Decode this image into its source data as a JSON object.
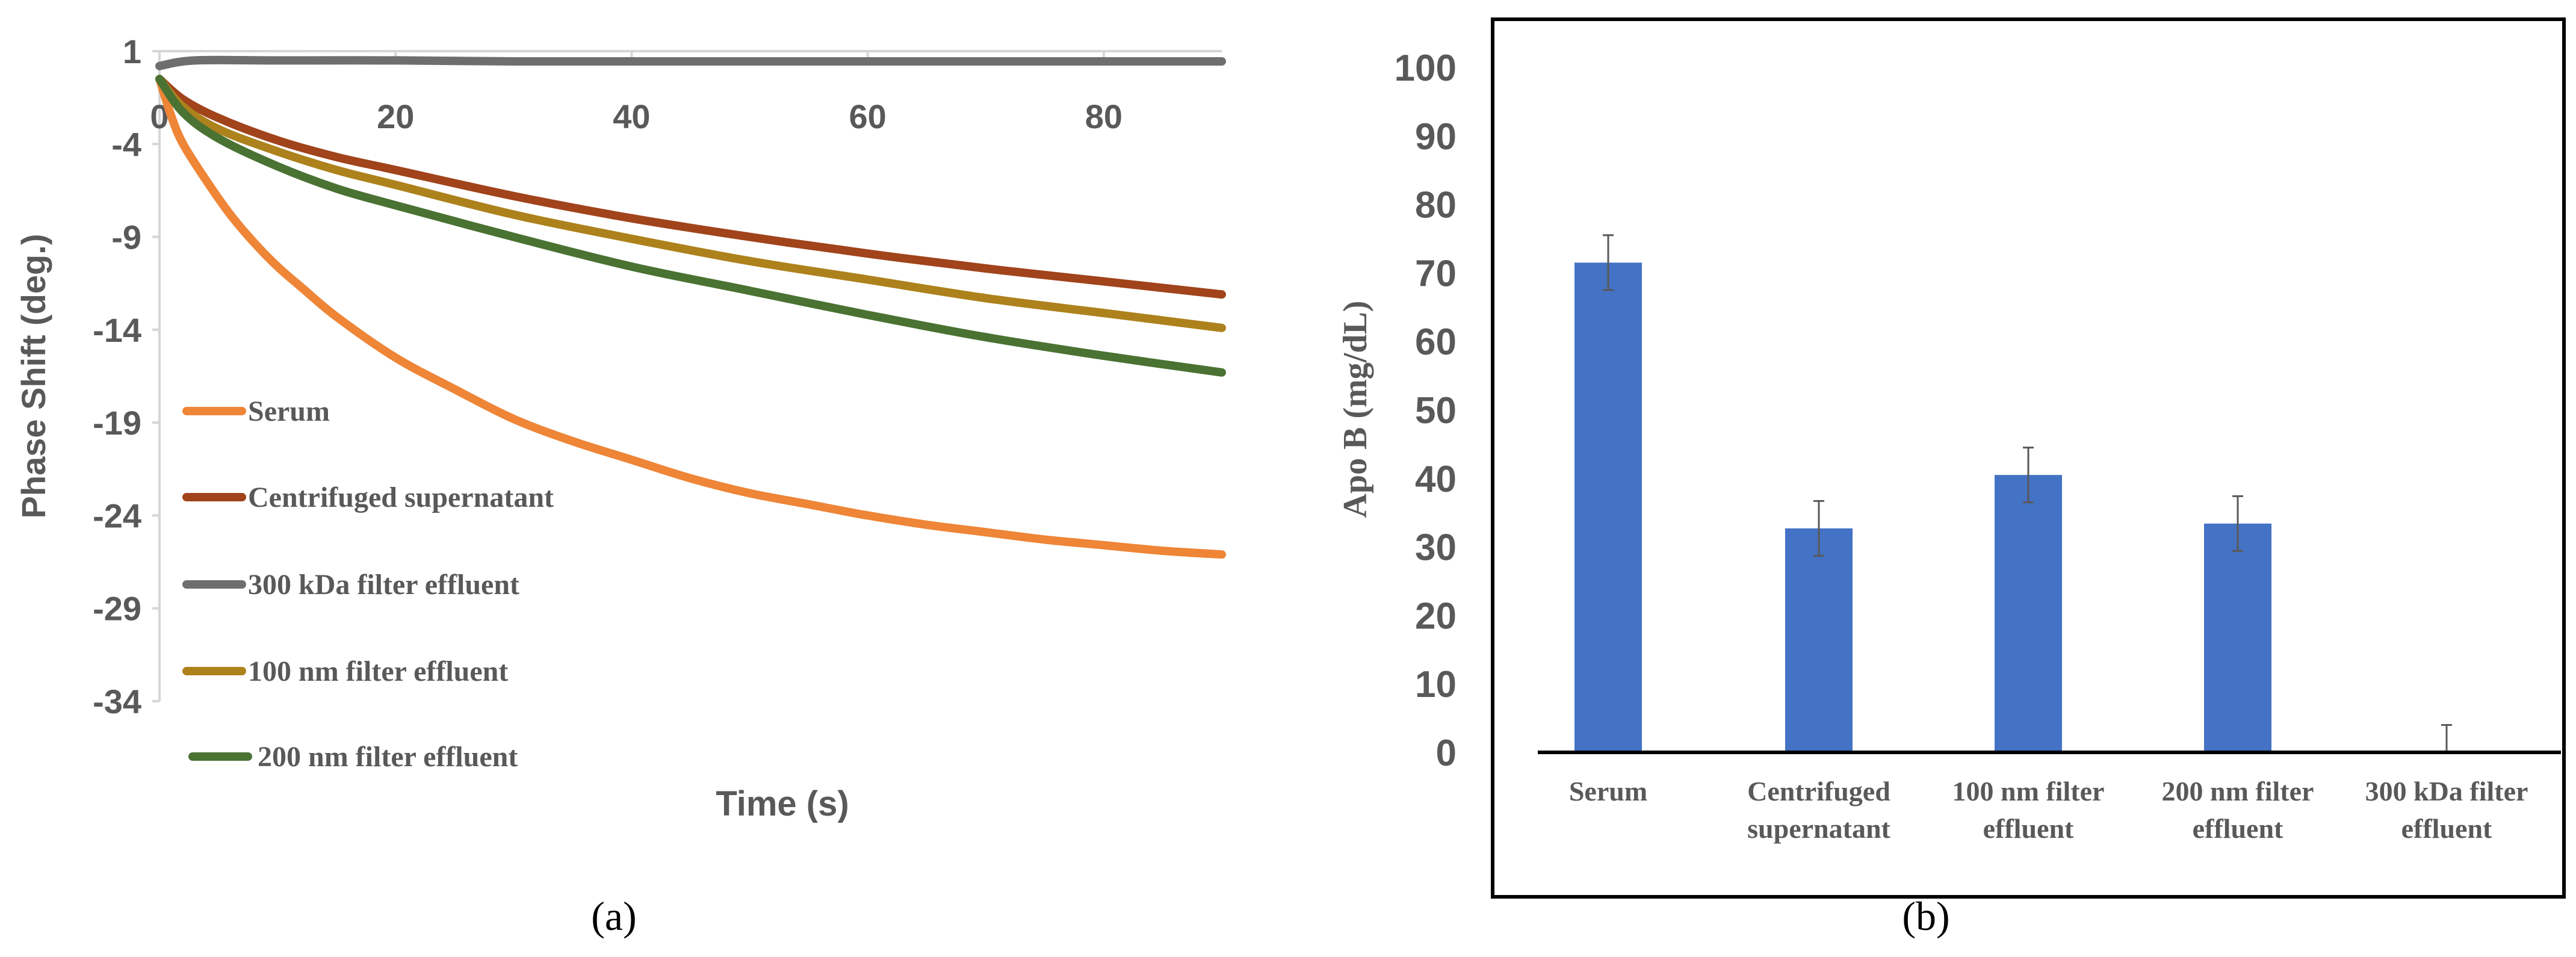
{
  "chart_data": [
    {
      "type": "line",
      "panel_label": "(a)",
      "xlabel": "Time (s)",
      "ylabel": "Phase Shift  (deg.)",
      "xlim": [
        0,
        90
      ],
      "ylim": [
        -34,
        1
      ],
      "x_ticks": [
        "0",
        "20",
        "40",
        "60",
        "80"
      ],
      "y_ticks": [
        "1",
        "-4",
        "-9",
        "-14",
        "-19",
        "-24",
        "-29",
        "-34"
      ],
      "legend_position": "left-center",
      "series": [
        {
          "name": "Serum",
          "color": "#ee8537",
          "x": [
            0,
            1,
            2,
            4,
            6,
            8,
            10,
            12,
            15,
            20,
            25,
            30,
            35,
            40,
            45,
            50,
            55,
            60,
            65,
            70,
            75,
            80,
            85,
            90
          ],
          "y": [
            -0.5,
            -2.5,
            -4.0,
            -6.0,
            -7.8,
            -9.3,
            -10.6,
            -11.7,
            -13.3,
            -15.5,
            -17.2,
            -18.8,
            -20.0,
            -21.0,
            -22.0,
            -22.8,
            -23.4,
            -24.0,
            -24.5,
            -24.9,
            -25.3,
            -25.6,
            -25.9,
            -26.1
          ]
        },
        {
          "name": "Centrifuged supernatant",
          "color": "#a1431b",
          "x": [
            0,
            2,
            5,
            10,
            15,
            20,
            30,
            40,
            50,
            60,
            70,
            80,
            90
          ],
          "y": [
            -0.5,
            -1.6,
            -2.6,
            -3.8,
            -4.7,
            -5.4,
            -6.8,
            -8.0,
            -9.0,
            -9.9,
            -10.7,
            -11.4,
            -12.1
          ]
        },
        {
          "name": "300 kDa filter effluent",
          "color": "#6e6e6e",
          "x": [
            0,
            3,
            10,
            20,
            30,
            40,
            50,
            60,
            70,
            80,
            90
          ],
          "y": [
            0.2,
            0.5,
            0.5,
            0.5,
            0.45,
            0.45,
            0.45,
            0.45,
            0.45,
            0.45,
            0.45
          ]
        },
        {
          "name": "100 nm filter effluent",
          "color": "#ad821c",
          "x": [
            0,
            2,
            5,
            10,
            15,
            20,
            30,
            40,
            50,
            60,
            70,
            80,
            90
          ],
          "y": [
            -0.5,
            -2.0,
            -3.2,
            -4.4,
            -5.4,
            -6.2,
            -7.8,
            -9.1,
            -10.3,
            -11.3,
            -12.3,
            -13.1,
            -13.9
          ]
        },
        {
          "name": "200 nm filter effluent",
          "color": "#4a7233",
          "x": [
            0,
            2,
            5,
            10,
            15,
            20,
            30,
            40,
            50,
            60,
            70,
            80,
            90
          ],
          "y": [
            -0.5,
            -2.3,
            -3.7,
            -5.2,
            -6.4,
            -7.3,
            -9.0,
            -10.6,
            -11.9,
            -13.2,
            -14.4,
            -15.4,
            -16.3
          ]
        }
      ]
    },
    {
      "type": "bar",
      "panel_label": "(b)",
      "ylabel": "Apo B  (mg/dL)",
      "xlabel": "",
      "ylim": [
        0,
        100
      ],
      "y_ticks": [
        "0",
        "10",
        "20",
        "30",
        "40",
        "50",
        "60",
        "70",
        "80",
        "90",
        "100"
      ],
      "categories": [
        "Serum",
        "Centrifuged supernatant",
        "100 nm filter effluent",
        "200 nm filter effluent",
        "300 kDa filter effluent"
      ],
      "category_lines": [
        [
          "Serum"
        ],
        [
          "Centrifuged",
          "supernatant"
        ],
        [
          "100 nm filter",
          "effluent"
        ],
        [
          "200 nm filter",
          "effluent"
        ],
        [
          "300 kDa filter",
          "effluent"
        ]
      ],
      "values": [
        71.5,
        32.7,
        40.5,
        33.4,
        0
      ],
      "errors": [
        4,
        4,
        4,
        4,
        4
      ],
      "bar_color": "#4472c4"
    }
  ]
}
